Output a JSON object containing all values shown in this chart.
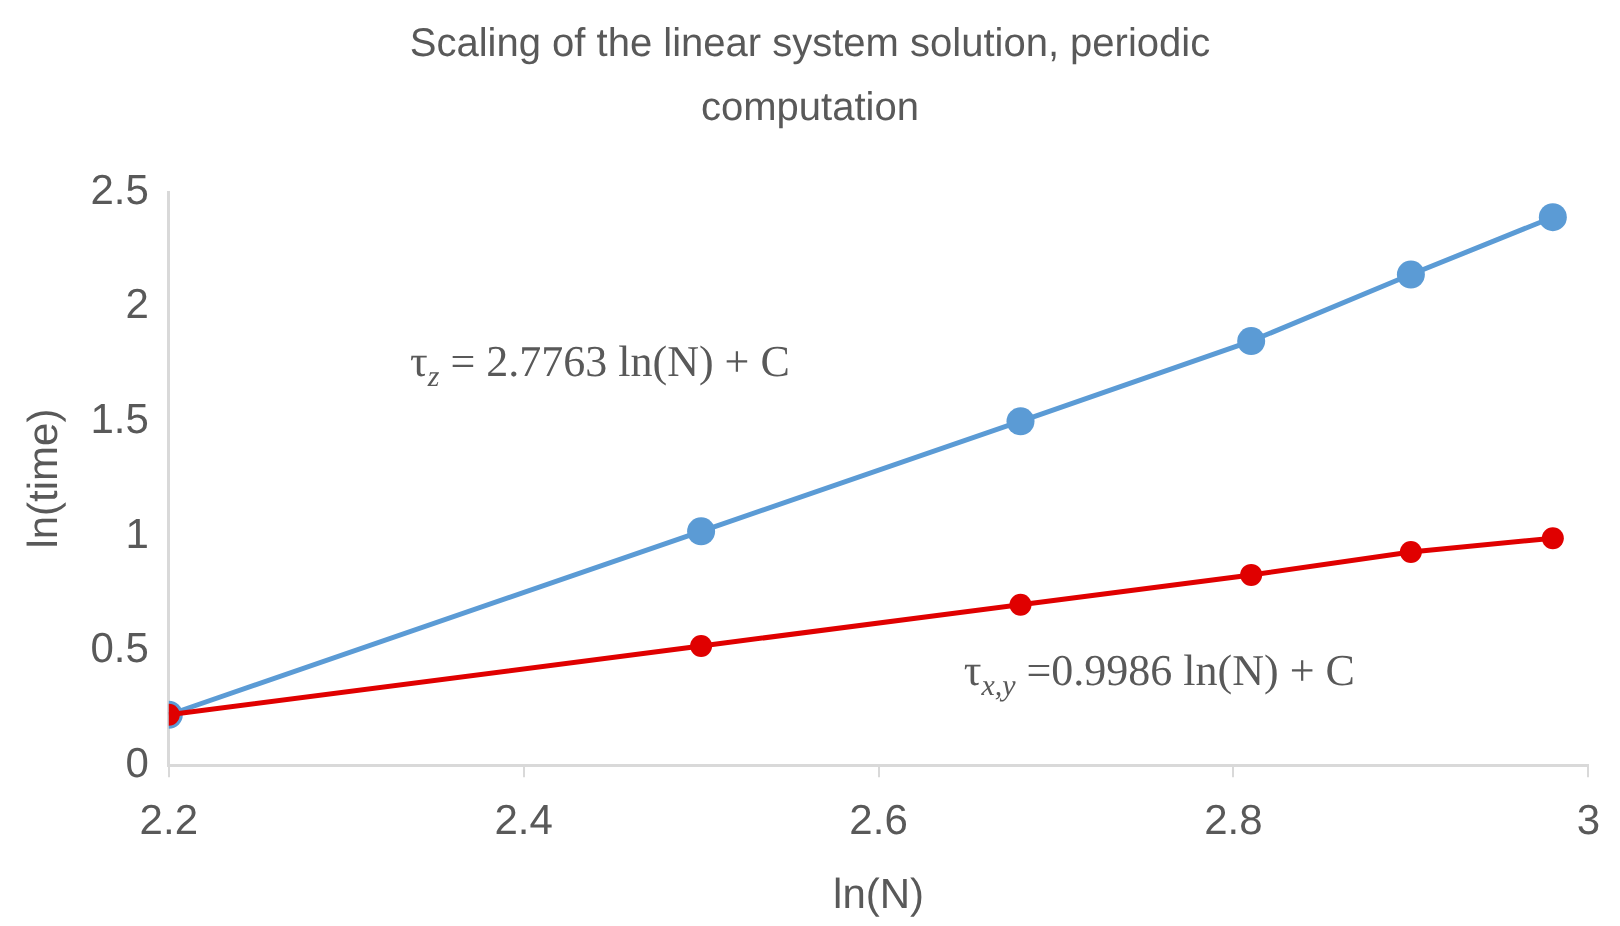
{
  "chart_data": {
    "type": "line",
    "title": "Scaling of the linear system solution, periodic computation",
    "xlabel": "ln(N)",
    "ylabel": "ln(time)",
    "x": [
      2.2,
      2.5,
      2.68,
      2.81,
      2.9,
      2.98
    ],
    "series": [
      {
        "color": "#5b9bd5",
        "values": [
          0.22,
          1.02,
          1.5,
          1.85,
          2.14,
          2.39
        ]
      },
      {
        "color": "#e00000",
        "values": [
          0.22,
          0.52,
          0.7,
          0.83,
          0.93,
          0.99
        ]
      }
    ],
    "xlim": [
      2.2,
      3
    ],
    "xticks": [
      2.2,
      2.4,
      2.6,
      2.8,
      3
    ],
    "ylim": [
      0,
      2.5
    ],
    "yticks": [
      0,
      0.5,
      1,
      1.5,
      2,
      2.5
    ],
    "grid": false,
    "legend": false,
    "marker": "circle",
    "line_style": "solid",
    "annotations": [
      "τ$_{z}$ = 2.7763 ln(N) + C",
      "τ$_{x,y}$ =0.9986 ln(N) + C"
    ]
  }
}
